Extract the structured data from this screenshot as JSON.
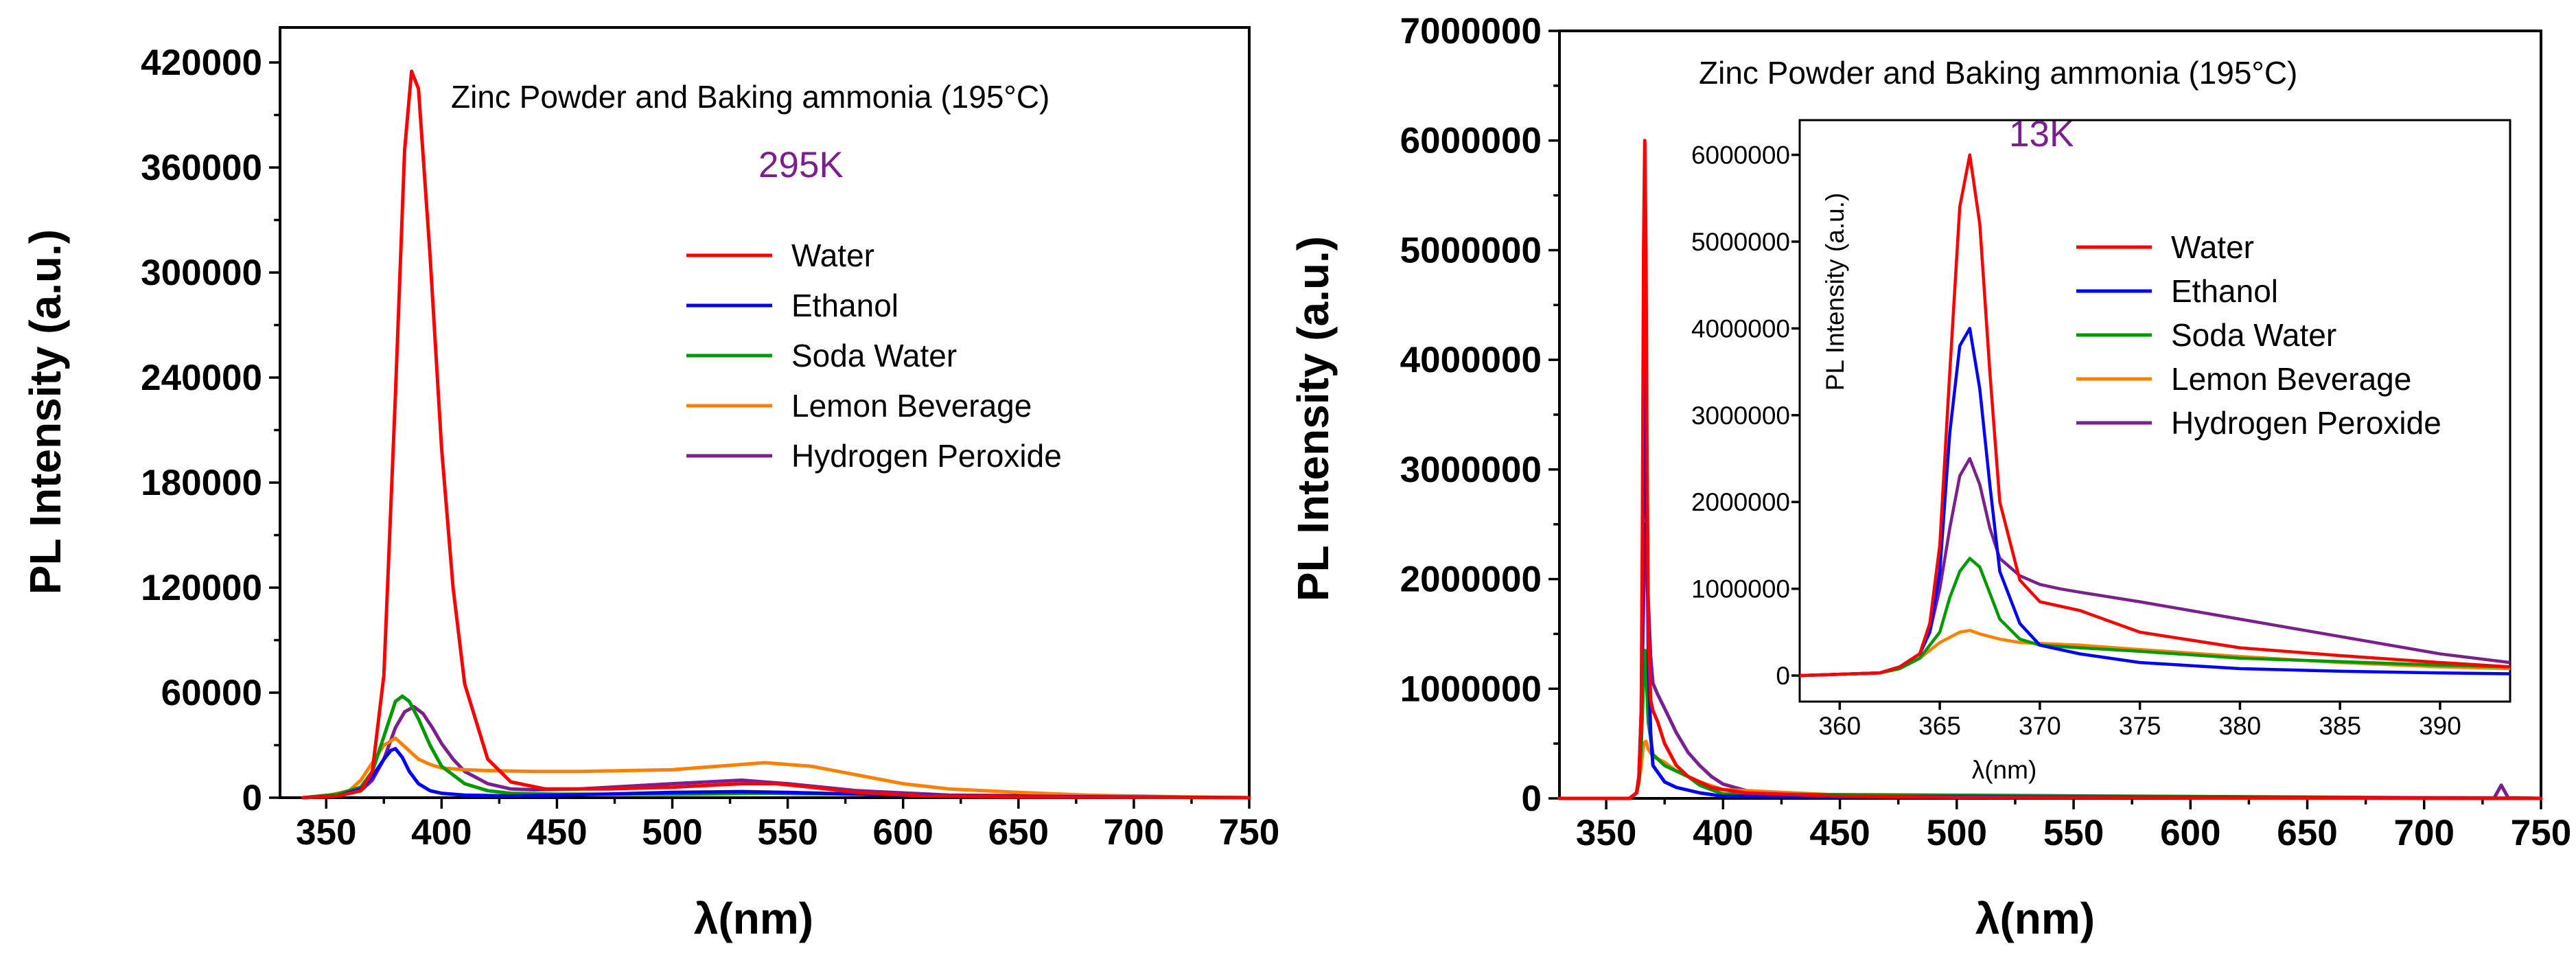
{
  "series_meta": [
    {
      "name": "Water",
      "color": "#ff0000"
    },
    {
      "name": "Ethanol",
      "color": "#0000ff"
    },
    {
      "name": "Soda Water",
      "color": "#009900"
    },
    {
      "name": "Lemon Beverage",
      "color": "#ff8000"
    },
    {
      "name": "Hydrogen Peroxide",
      "color": "#7b1f8f"
    }
  ],
  "chart_data": [
    {
      "id": "left",
      "type": "line",
      "title": "Zinc Powder and Baking ammonia (195°C)",
      "temperature": "295K",
      "xlabel": "λ(nm)",
      "ylabel": "PL Intensity (a.u.)",
      "xlim": [
        330,
        750
      ],
      "ylim": [
        0,
        440000
      ],
      "xticks": [
        350,
        400,
        450,
        500,
        550,
        600,
        650,
        700,
        750
      ],
      "yticks": [
        0,
        60000,
        120000,
        180000,
        240000,
        300000,
        360000,
        420000
      ],
      "xtick_labels": [
        "350",
        "400",
        "450",
        "500",
        "550",
        "600",
        "650",
        "700",
        "750"
      ],
      "ytick_labels": [
        "0",
        "60000",
        "120000",
        "180000",
        "240000",
        "300000",
        "360000",
        "420000"
      ],
      "series": [
        {
          "name": "Water",
          "x": [
            340,
            355,
            365,
            370,
            375,
            380,
            384,
            387,
            390,
            395,
            400,
            405,
            410,
            420,
            430,
            445,
            470,
            500,
            530,
            545,
            560,
            580,
            610,
            650,
            750
          ],
          "y": [
            0,
            1000,
            4000,
            15000,
            70000,
            230000,
            370000,
            415000,
            405000,
            310000,
            200000,
            120000,
            65000,
            22000,
            9000,
            5000,
            5000,
            6000,
            8000,
            8000,
            6000,
            3000,
            1000,
            500,
            0
          ]
        },
        {
          "name": "Ethanol",
          "x": [
            340,
            355,
            365,
            370,
            375,
            378,
            380,
            383,
            386,
            390,
            395,
            400,
            410,
            430,
            470,
            500,
            530,
            550,
            580,
            620,
            750
          ],
          "y": [
            0,
            1000,
            5000,
            12000,
            22000,
            27000,
            28000,
            23000,
            15000,
            8000,
            4000,
            2500,
            1500,
            1000,
            2000,
            3000,
            3500,
            3000,
            2000,
            1000,
            0
          ]
        },
        {
          "name": "Soda Water",
          "x": [
            340,
            355,
            365,
            370,
            375,
            380,
            383,
            386,
            390,
            395,
            400,
            410,
            420,
            430,
            450,
            500,
            540,
            580,
            620,
            750
          ],
          "y": [
            0,
            2000,
            6000,
            15000,
            35000,
            55000,
            58000,
            55000,
            45000,
            30000,
            18000,
            8000,
            4000,
            2500,
            2000,
            2000,
            2500,
            2000,
            1000,
            0
          ]
        },
        {
          "name": "Lemon Beverage",
          "x": [
            340,
            350,
            360,
            365,
            370,
            375,
            380,
            385,
            390,
            395,
            400,
            410,
            420,
            440,
            460,
            480,
            500,
            520,
            540,
            560,
            580,
            600,
            620,
            650,
            680,
            720,
            750
          ],
          "y": [
            0,
            1000,
            4000,
            10000,
            20000,
            30000,
            34000,
            28000,
            22000,
            19000,
            17000,
            16000,
            15500,
            15000,
            15000,
            15500,
            16000,
            18000,
            20000,
            18000,
            13000,
            8000,
            5000,
            3000,
            1500,
            500,
            0
          ]
        },
        {
          "name": "Hydrogen Peroxide",
          "x": [
            340,
            355,
            365,
            370,
            375,
            380,
            384,
            388,
            392,
            396,
            400,
            405,
            410,
            420,
            430,
            440,
            460,
            500,
            530,
            550,
            580,
            620,
            750
          ],
          "y": [
            0,
            1000,
            4000,
            10000,
            22000,
            40000,
            49000,
            52000,
            48000,
            40000,
            31000,
            22000,
            15000,
            8000,
            5000,
            4500,
            5000,
            8000,
            10000,
            8000,
            4000,
            1500,
            0
          ]
        }
      ]
    },
    {
      "id": "right",
      "type": "line",
      "title": "Zinc Powder and Baking ammonia (195°C)",
      "temperature": "13K",
      "xlabel": "λ(nm)",
      "ylabel": "PL Intensity (a.u.)",
      "xlim": [
        330,
        750
      ],
      "ylim": [
        0,
        7000000
      ],
      "xticks": [
        350,
        400,
        450,
        500,
        550,
        600,
        650,
        700,
        750
      ],
      "yticks": [
        0,
        1000000,
        2000000,
        3000000,
        4000000,
        5000000,
        6000000,
        7000000
      ],
      "xtick_labels": [
        "350",
        "400",
        "450",
        "500",
        "550",
        "600",
        "650",
        "700",
        "750"
      ],
      "ytick_labels": [
        "0",
        "1000000",
        "2000000",
        "3000000",
        "4000000",
        "5000000",
        "6000000",
        "7000000"
      ],
      "series": [
        {
          "name": "Water",
          "x": [
            330,
            360,
            363,
            364,
            365,
            365.5,
            366,
            366.5,
            367,
            367.5,
            368,
            369,
            370,
            372,
            375,
            380,
            385,
            390,
            395,
            400,
            410,
            450,
            500,
            600,
            700,
            750
          ],
          "y": [
            0,
            0,
            50000,
            200000,
            800000,
            2500000,
            5000000,
            6000000,
            5000000,
            3000000,
            1500000,
            900000,
            800000,
            700000,
            500000,
            300000,
            200000,
            150000,
            100000,
            80000,
            50000,
            20000,
            10000,
            5000,
            2000,
            0
          ]
        },
        {
          "name": "Ethanol",
          "x": [
            330,
            360,
            363,
            364,
            365,
            366,
            366.5,
            367,
            368,
            369,
            370,
            375,
            380,
            390,
            400,
            750
          ],
          "y": [
            0,
            0,
            50000,
            200000,
            800000,
            2800000,
            4000000,
            3500000,
            1300000,
            600000,
            300000,
            150000,
            100000,
            50000,
            20000,
            0
          ]
        },
        {
          "name": "Soda Water",
          "x": [
            330,
            360,
            363,
            364,
            365,
            366,
            366.5,
            367,
            368,
            370,
            375,
            380,
            385,
            390,
            400,
            750
          ],
          "y": [
            0,
            0,
            50000,
            150000,
            500000,
            1100000,
            1350000,
            1200000,
            700000,
            400000,
            300000,
            250000,
            200000,
            120000,
            40000,
            0
          ]
        },
        {
          "name": "Lemon Beverage",
          "x": [
            330,
            360,
            363,
            364,
            365,
            366,
            367,
            368,
            370,
            375,
            380,
            385,
            390,
            400,
            450,
            500,
            750
          ],
          "y": [
            0,
            0,
            50000,
            150000,
            300000,
            500000,
            520000,
            450000,
            380000,
            330000,
            250000,
            200000,
            150000,
            80000,
            30000,
            10000,
            0
          ]
        },
        {
          "name": "Hydrogen Peroxide",
          "x": [
            330,
            360,
            363,
            364,
            365,
            366,
            367,
            368,
            369,
            370,
            372,
            375,
            380,
            385,
            390,
            395,
            400,
            410,
            450,
            500,
            600,
            720,
            730,
            733,
            736,
            740,
            750
          ],
          "y": [
            0,
            0,
            50000,
            200000,
            700000,
            1800000,
            2500000,
            1800000,
            1300000,
            1050000,
            950000,
            820000,
            600000,
            420000,
            300000,
            200000,
            130000,
            70000,
            20000,
            10000,
            5000,
            5000,
            5000,
            120000,
            5000,
            5000,
            0
          ]
        }
      ],
      "inset": {
        "xlabel": "λ(nm)",
        "ylabel": "PL Intensity (a.u.)",
        "xlim": [
          358,
          393.5
        ],
        "ylim": [
          -300000,
          6400000
        ],
        "xticks": [
          360,
          365,
          370,
          375,
          380,
          385,
          390
        ],
        "yticks": [
          0,
          1000000,
          2000000,
          3000000,
          4000000,
          5000000,
          6000000
        ],
        "xtick_labels": [
          "360",
          "365",
          "370",
          "375",
          "380",
          "385",
          "390"
        ],
        "ytick_labels": [
          "0",
          "1000000",
          "2000000",
          "3000000",
          "4000000",
          "5000000",
          "6000000"
        ],
        "series": [
          {
            "name": "Water",
            "x": [
              358,
              362,
              363,
              364,
              364.5,
              365,
              365.5,
              366,
              366.5,
              367,
              367.5,
              368,
              369,
              370,
              372,
              375,
              380,
              385,
              390,
              393.5
            ],
            "y": [
              0,
              30000,
              100000,
              250000,
              600000,
              1500000,
              3500000,
              5400000,
              6000000,
              5200000,
              3500000,
              2000000,
              1100000,
              850000,
              750000,
              500000,
              320000,
              230000,
              150000,
              100000
            ]
          },
          {
            "name": "Ethanol",
            "x": [
              358,
              362,
              363,
              364,
              364.5,
              365,
              365.5,
              366,
              366.5,
              367,
              367.5,
              368,
              369,
              370,
              372,
              375,
              380,
              385,
              390,
              393.5
            ],
            "y": [
              0,
              30000,
              100000,
              250000,
              500000,
              1200000,
              2800000,
              3800000,
              4000000,
              3300000,
              2200000,
              1200000,
              600000,
              350000,
              250000,
              150000,
              80000,
              50000,
              30000,
              20000
            ]
          },
          {
            "name": "Soda Water",
            "x": [
              358,
              362,
              363,
              364,
              365,
              365.5,
              366,
              366.5,
              367,
              367.5,
              368,
              369,
              370,
              372,
              375,
              380,
              385,
              390,
              393.5
            ],
            "y": [
              0,
              30000,
              80000,
              200000,
              500000,
              900000,
              1200000,
              1350000,
              1250000,
              950000,
              650000,
              420000,
              350000,
              320000,
              280000,
              200000,
              160000,
              120000,
              100000
            ]
          },
          {
            "name": "Lemon Beverage",
            "x": [
              358,
              362,
              363,
              364,
              365,
              366,
              366.5,
              367,
              368,
              369,
              370,
              372,
              375,
              380,
              385,
              390,
              393.5
            ],
            "y": [
              0,
              30000,
              80000,
              200000,
              380000,
              500000,
              520000,
              480000,
              420000,
              380000,
              370000,
              350000,
              300000,
              220000,
              150000,
              100000,
              80000
            ]
          },
          {
            "name": "Hydrogen Peroxide",
            "x": [
              358,
              362,
              363,
              364,
              364.5,
              365,
              365.5,
              366,
              366.5,
              367,
              367.5,
              368,
              369,
              370,
              371,
              372,
              375,
              380,
              385,
              390,
              393.5
            ],
            "y": [
              0,
              30000,
              100000,
              250000,
              500000,
              1000000,
              1700000,
              2300000,
              2500000,
              2200000,
              1700000,
              1350000,
              1150000,
              1050000,
              1000000,
              960000,
              850000,
              650000,
              450000,
              250000,
              150000
            ]
          }
        ]
      }
    }
  ]
}
